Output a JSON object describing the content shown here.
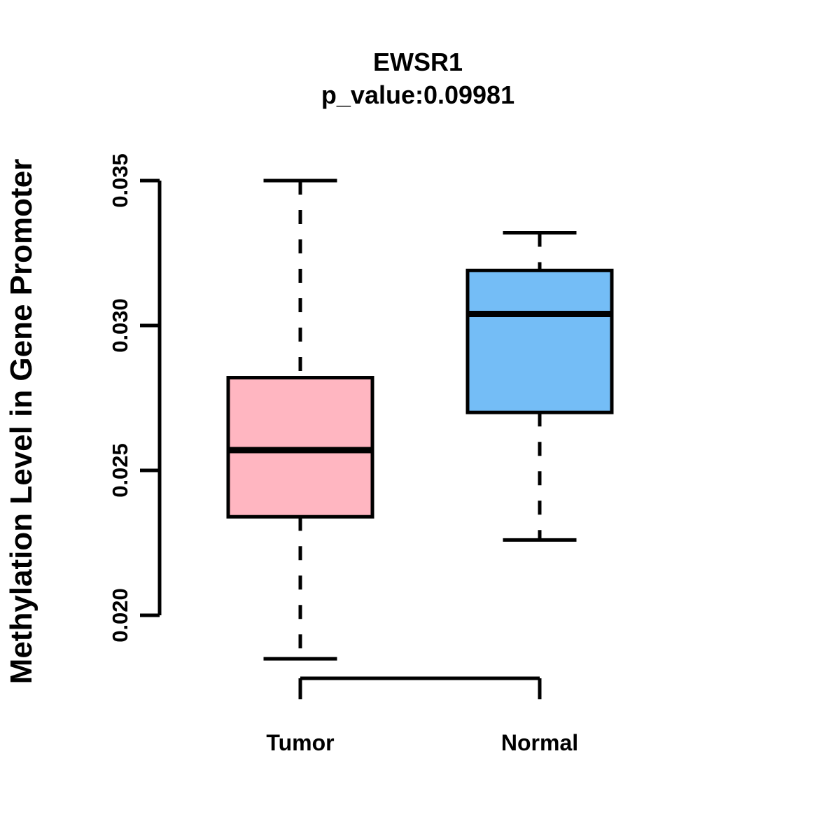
{
  "title": "EWSR1",
  "subtitle": "p_value:0.09981",
  "p_value": "0.09981",
  "chart_data": {
    "type": "boxplot",
    "title": "EWSR1",
    "subtitle": "p_value:0.09981",
    "xlabel": "",
    "ylabel": "Methylation Level in Gene Promoter",
    "categories": [
      "Tumor",
      "Normal"
    ],
    "yticks": [
      0.02,
      0.025,
      0.03,
      0.035
    ],
    "ytick_labels": [
      "0.020",
      "0.025",
      "0.030",
      "0.035"
    ],
    "ylim": [
      0.0185,
      0.035
    ],
    "grid": false,
    "legend": "none",
    "groups": [
      {
        "label": "Tumor",
        "color": "#FFB6C1",
        "whisker_low": 0.0185,
        "q1": 0.0234,
        "median": 0.0257,
        "q3": 0.0282,
        "whisker_high": 0.035
      },
      {
        "label": "Normal",
        "color": "#74BDF6",
        "whisker_low": 0.0226,
        "q1": 0.027,
        "median": 0.0304,
        "q3": 0.0319,
        "whisker_high": 0.0332
      }
    ],
    "colors": {
      "box_border": "#000000",
      "median_line": "#000000",
      "whisker": "#000000",
      "axis": "#000000",
      "text": "#000000",
      "background": "#FFFFFF"
    }
  }
}
